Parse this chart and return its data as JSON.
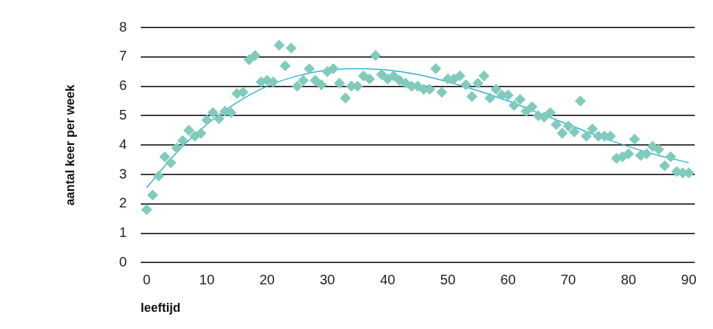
{
  "chart_data": {
    "type": "scatter",
    "xlabel": "leeftijd",
    "ylabel": "aantal keer per week",
    "xlim": [
      -1,
      91
    ],
    "ylim": [
      0,
      8
    ],
    "xticks": [
      0,
      10,
      20,
      30,
      40,
      50,
      60,
      70,
      80,
      90
    ],
    "yticks": [
      0,
      1,
      2,
      3,
      4,
      5,
      6,
      7,
      8
    ],
    "grid": "y",
    "legend": false,
    "marker": "diamond",
    "series": [
      {
        "type": "scatter",
        "color": "#80cbbc",
        "x": [
          0,
          1,
          2,
          3,
          4,
          5,
          6,
          7,
          8,
          9,
          10,
          11,
          12,
          13,
          14,
          15,
          16,
          17,
          18,
          19,
          20,
          21,
          22,
          23,
          24,
          25,
          26,
          27,
          28,
          29,
          30,
          31,
          32,
          33,
          34,
          35,
          36,
          37,
          38,
          39,
          40,
          41,
          42,
          43,
          44,
          45,
          46,
          47,
          48,
          49,
          50,
          51,
          52,
          53,
          54,
          55,
          56,
          57,
          58,
          59,
          60,
          61,
          62,
          63,
          64,
          65,
          66,
          67,
          68,
          69,
          70,
          71,
          72,
          73,
          74,
          75,
          76,
          77,
          78,
          79,
          80,
          81,
          82,
          83,
          84,
          85,
          86,
          87,
          88,
          89,
          90
        ],
        "values": [
          1.8,
          2.3,
          2.95,
          3.6,
          3.4,
          3.9,
          4.15,
          4.5,
          4.3,
          4.4,
          4.85,
          5.1,
          4.9,
          5.15,
          5.1,
          5.75,
          5.8,
          6.9,
          7.05,
          6.15,
          6.2,
          6.15,
          7.4,
          6.7,
          7.3,
          6.0,
          6.2,
          6.6,
          6.2,
          6.05,
          6.5,
          6.6,
          6.1,
          5.6,
          6.0,
          6.0,
          6.35,
          6.25,
          7.05,
          6.4,
          6.25,
          6.35,
          6.2,
          6.1,
          6.0,
          6.0,
          5.9,
          5.9,
          6.6,
          5.8,
          6.25,
          6.25,
          6.35,
          6.05,
          5.65,
          6.1,
          6.35,
          5.6,
          5.9,
          5.7,
          5.7,
          5.35,
          5.55,
          5.15,
          5.3,
          5.0,
          4.95,
          5.1,
          4.7,
          4.4,
          4.65,
          4.45,
          5.5,
          4.3,
          4.55,
          4.3,
          4.3,
          4.3,
          3.55,
          3.6,
          3.7,
          4.2,
          3.65,
          3.7,
          3.95,
          3.85,
          3.3,
          3.6,
          3.1,
          3.05,
          3.05
        ]
      },
      {
        "type": "line",
        "color": "#29abe2",
        "marker": "none",
        "x": [
          0,
          5,
          10,
          15,
          20,
          25,
          30,
          35,
          40,
          45,
          50,
          55,
          60,
          65,
          70,
          75,
          80,
          85,
          90
        ],
        "values": [
          2.55,
          3.75,
          4.7,
          5.45,
          6.0,
          6.35,
          6.55,
          6.6,
          6.55,
          6.4,
          6.15,
          5.85,
          5.5,
          5.1,
          4.7,
          4.3,
          3.95,
          3.65,
          3.4
        ]
      }
    ]
  }
}
